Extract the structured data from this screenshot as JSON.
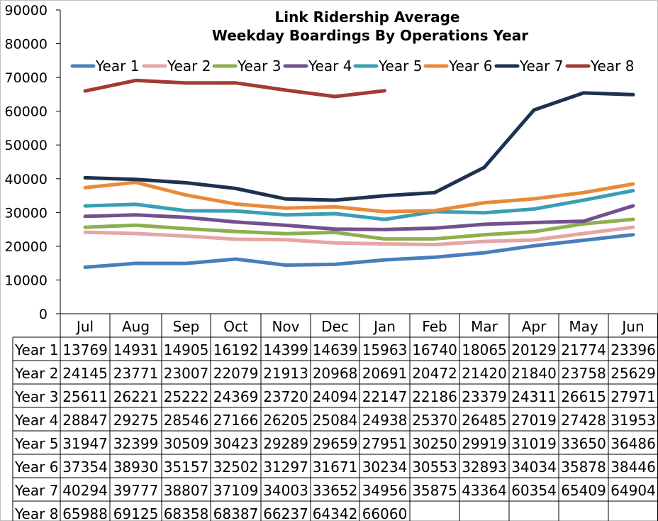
{
  "chart_data": {
    "type": "line",
    "title": [
      "Link Ridership Average",
      "Weekday Boardings By Operations Year"
    ],
    "xlabel": "",
    "ylabel": "",
    "ylim": [
      0,
      90000
    ],
    "yticks": [
      0,
      10000,
      20000,
      30000,
      40000,
      50000,
      60000,
      70000,
      80000,
      90000
    ],
    "grid": false,
    "legend_position": "top",
    "categories": [
      "Jul",
      "Aug",
      "Sep",
      "Oct",
      "Nov",
      "Dec",
      "Jan",
      "Feb",
      "Mar",
      "Apr",
      "May",
      "Jun"
    ],
    "series": [
      {
        "name": "Year 1",
        "color": "#4a7ebb",
        "values": [
          13769,
          14931,
          14905,
          16192,
          14399,
          14639,
          15963,
          16740,
          18065,
          20129,
          21774,
          23396
        ]
      },
      {
        "name": "Year 2",
        "color": "#e6a5a5",
        "values": [
          24145,
          23771,
          23007,
          22079,
          21913,
          20968,
          20691,
          20472,
          21420,
          21840,
          23758,
          25629
        ]
      },
      {
        "name": "Year 3",
        "color": "#8faf4f",
        "values": [
          25611,
          26221,
          25222,
          24369,
          23720,
          24094,
          22147,
          22186,
          23379,
          24311,
          26615,
          27971
        ]
      },
      {
        "name": "Year 4",
        "color": "#73508f",
        "values": [
          28847,
          29275,
          28546,
          27166,
          26205,
          25084,
          24938,
          25370,
          26485,
          27019,
          27428,
          31953
        ]
      },
      {
        "name": "Year 5",
        "color": "#3a9fb4",
        "values": [
          31947,
          32399,
          30509,
          30423,
          29289,
          29659,
          27951,
          30250,
          29919,
          31019,
          33650,
          36486
        ]
      },
      {
        "name": "Year 6",
        "color": "#e98a3a",
        "values": [
          37354,
          38930,
          35157,
          32502,
          31297,
          31671,
          30234,
          30553,
          32893,
          34034,
          35878,
          38446
        ]
      },
      {
        "name": "Year 7",
        "color": "#1d3251",
        "values": [
          40294,
          39777,
          38807,
          37109,
          34003,
          33652,
          34956,
          35875,
          43364,
          60354,
          65409,
          64904
        ]
      },
      {
        "name": "Year 8",
        "color": "#a33b32",
        "values": [
          65988,
          69125,
          68358,
          68387,
          66237,
          64342,
          66060,
          null,
          null,
          null,
          null,
          null
        ]
      }
    ]
  }
}
